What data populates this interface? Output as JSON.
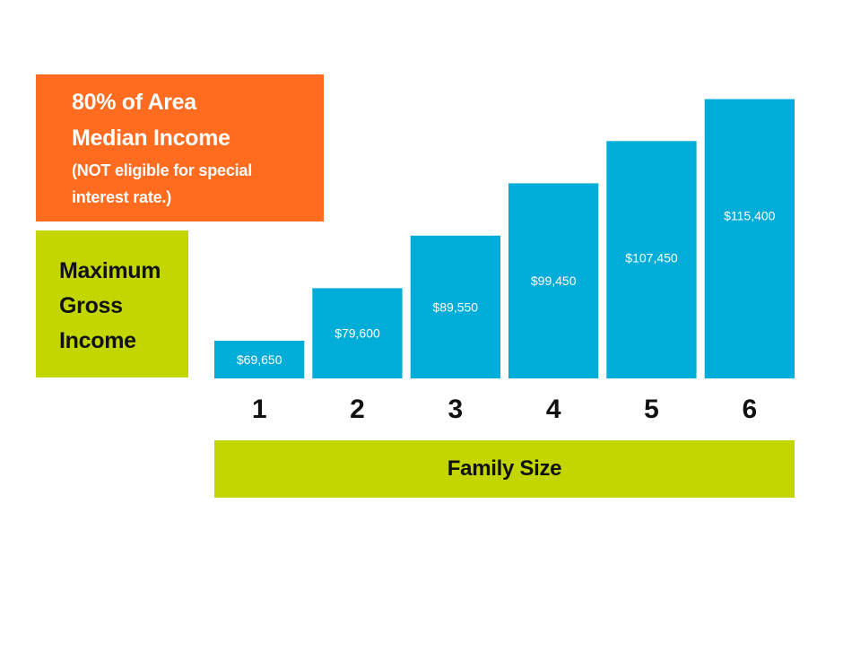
{
  "header_box": {
    "line1": "80%  of Area",
    "line2": "Median Income",
    "line3": "(NOT eligible for special",
    "line4": "interest rate.)",
    "color": "#ff6b1f"
  },
  "ylabel_box": {
    "line1": "Maximum",
    "line2": "Gross",
    "line3": "Income",
    "color": "#c3d600"
  },
  "xlabel_box": {
    "label": "Family Size",
    "color": "#c3d600"
  },
  "chart_data": {
    "type": "bar",
    "categories": [
      "1",
      "2",
      "3",
      "4",
      "5",
      "6"
    ],
    "values": [
      69650,
      79600,
      89550,
      99450,
      107450,
      115400
    ],
    "data_labels": [
      "$69,650",
      "$79,600",
      "$89,550",
      "$99,450",
      "$107,450",
      "$115,400"
    ],
    "xlabel": "Family Size",
    "ylabel": "Maximum Gross Income",
    "bar_color": "#00acd8",
    "grid": false
  }
}
